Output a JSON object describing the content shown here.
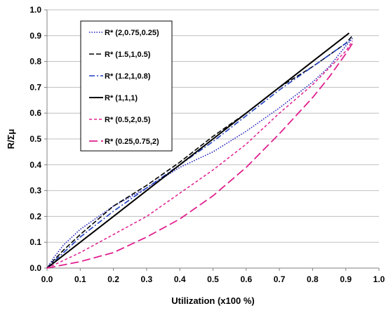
{
  "chart_data": {
    "type": "line",
    "title": "",
    "xlabel": "Utilization (x100 %)",
    "ylabel": "R/Σμ",
    "xlim": [
      0,
      1.0
    ],
    "ylim": [
      0,
      1.0
    ],
    "x_ticks": [
      "0.0",
      "0.1",
      "0.2",
      "0.3",
      "0.4",
      "0.5",
      "0.6",
      "0.7",
      "0.8",
      "0.9",
      "1.0"
    ],
    "y_ticks": [
      "0.0",
      "0.1",
      "0.2",
      "0.3",
      "0.4",
      "0.5",
      "0.6",
      "0.7",
      "0.8",
      "0.9",
      "1.0"
    ],
    "grid": "horizontal",
    "legend_position": "top-left",
    "series": [
      {
        "name": "R* (2,0.75,0.25)",
        "color": "#1f1fbf",
        "style": "dotted",
        "points": [
          [
            0,
            0
          ],
          [
            0.02,
            0.04
          ],
          [
            0.05,
            0.09
          ],
          [
            0.1,
            0.15
          ],
          [
            0.2,
            0.24
          ],
          [
            0.3,
            0.31
          ],
          [
            0.4,
            0.39
          ],
          [
            0.5,
            0.45
          ],
          [
            0.6,
            0.53
          ],
          [
            0.7,
            0.62
          ],
          [
            0.8,
            0.72
          ],
          [
            0.85,
            0.78
          ],
          [
            0.9,
            0.86
          ],
          [
            0.92,
            0.89
          ]
        ]
      },
      {
        "name": "R* (1.5,1,0.5)",
        "color": "#000000",
        "style": "dashed",
        "points": [
          [
            0,
            0
          ],
          [
            0.02,
            0.03
          ],
          [
            0.05,
            0.07
          ],
          [
            0.1,
            0.13
          ],
          [
            0.2,
            0.24
          ],
          [
            0.3,
            0.32
          ],
          [
            0.4,
            0.41
          ],
          [
            0.5,
            0.51
          ],
          [
            0.6,
            0.6
          ],
          [
            0.7,
            0.7
          ],
          [
            0.8,
            0.78
          ],
          [
            0.9,
            0.87
          ],
          [
            0.92,
            0.9
          ]
        ]
      },
      {
        "name": "R* (1.2,1,0.8)",
        "color": "#1f3fbf",
        "style": "dashdot",
        "points": [
          [
            0,
            0
          ],
          [
            0.02,
            0.025
          ],
          [
            0.05,
            0.06
          ],
          [
            0.1,
            0.12
          ],
          [
            0.2,
            0.22
          ],
          [
            0.3,
            0.31
          ],
          [
            0.4,
            0.4
          ],
          [
            0.5,
            0.49
          ],
          [
            0.6,
            0.59
          ],
          [
            0.7,
            0.69
          ],
          [
            0.8,
            0.78
          ],
          [
            0.9,
            0.87
          ],
          [
            0.92,
            0.89
          ]
        ]
      },
      {
        "name": "R* (1,1,1)",
        "color": "#000000",
        "style": "solid",
        "points": [
          [
            0,
            0
          ],
          [
            0.1,
            0.1
          ],
          [
            0.2,
            0.2
          ],
          [
            0.3,
            0.3
          ],
          [
            0.4,
            0.4
          ],
          [
            0.5,
            0.5
          ],
          [
            0.6,
            0.6
          ],
          [
            0.7,
            0.7
          ],
          [
            0.8,
            0.8
          ],
          [
            0.9,
            0.9
          ],
          [
            0.91,
            0.91
          ]
        ]
      },
      {
        "name": "R* (0.5,2,0.5)",
        "color": "#e0208f",
        "style": "shortdash",
        "points": [
          [
            0,
            0
          ],
          [
            0.05,
            0.03
          ],
          [
            0.1,
            0.06
          ],
          [
            0.2,
            0.13
          ],
          [
            0.3,
            0.2
          ],
          [
            0.4,
            0.29
          ],
          [
            0.5,
            0.38
          ],
          [
            0.6,
            0.48
          ],
          [
            0.7,
            0.6
          ],
          [
            0.8,
            0.71
          ],
          [
            0.9,
            0.84
          ],
          [
            0.92,
            0.88
          ]
        ]
      },
      {
        "name": "R* (0.25,0.75,2)",
        "color": "#e0208f",
        "style": "longdash",
        "points": [
          [
            0,
            0
          ],
          [
            0.1,
            0.025
          ],
          [
            0.2,
            0.06
          ],
          [
            0.3,
            0.12
          ],
          [
            0.4,
            0.19
          ],
          [
            0.5,
            0.28
          ],
          [
            0.6,
            0.39
          ],
          [
            0.7,
            0.52
          ],
          [
            0.8,
            0.66
          ],
          [
            0.85,
            0.74
          ],
          [
            0.9,
            0.83
          ],
          [
            0.92,
            0.87
          ]
        ]
      }
    ]
  }
}
